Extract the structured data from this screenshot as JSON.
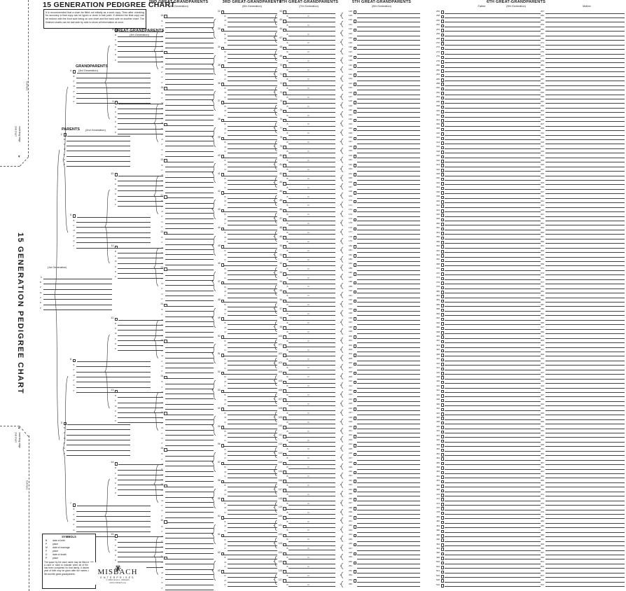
{
  "page_title": "15 GENERATION PEDIGREE CHART",
  "side_title": "15 GENERATION PEDIGREE CHART",
  "instructions": "It is recommended that a chart be filled out initially as a work copy. Then after checking for accuracy a final copy can be typed or done in ball point. If desired the final copy can be redone with the front side being on one chart and the back side on another chart. The finished charts can be laid side by side to show all information at once.",
  "cut_tab": {
    "cut_here": "Cut here",
    "match_line1": "2nd chart",
    "match_line2": "matching edge",
    "arrow_down": "▼",
    "arrow_up": "▲"
  },
  "field_labels": {
    "birth": "B",
    "place": "P",
    "marriage": "M",
    "death": "D"
  },
  "columns": [
    {
      "id": "gen1",
      "header": "",
      "subheader": "(1st Generation)",
      "start": 1,
      "end": 1
    },
    {
      "id": "gen2",
      "header": "PARENTS",
      "subheader": "(2nd Generation)",
      "start": 2,
      "end": 3
    },
    {
      "id": "gen3",
      "header": "GRANDPARENTS",
      "subheader": "(3rd Generation)",
      "start": 4,
      "end": 7
    },
    {
      "id": "gen4",
      "header": "GREAT-GRANDPARENTS",
      "subheader": "(4th Generation)",
      "start": 8,
      "end": 15
    },
    {
      "id": "gen5",
      "header": "2ND GREAT-GRANDPARENTS",
      "subheader": "(5th Generation)",
      "start": 16,
      "end": 31
    },
    {
      "id": "gen6",
      "header": "3RD GREAT-GRANDPARENTS",
      "subheader": "(6th Generation)",
      "start": 32,
      "end": 63
    },
    {
      "id": "gen7",
      "header": "4TH GREAT-GRANDPARENTS",
      "subheader": "(7th Generation)",
      "start": 64,
      "end": 127
    },
    {
      "id": "gen8",
      "header": "5TH GREAT-GRANDPARENTS",
      "subheader": "(8th Generation)",
      "start": 128,
      "end": 255
    },
    {
      "id": "gen9",
      "header": "6TH GREAT-GRANDPARENTS",
      "subheader": "(9th Generation)",
      "father_label": "Father",
      "mother_label": "Mother",
      "start": 256,
      "end": 511
    }
  ],
  "symbols_box": {
    "title": "SYMBOLS",
    "entries": [
      [
        "B",
        "date of birth"
      ],
      [
        "P",
        "place"
      ],
      [
        "M",
        "date of marriage"
      ],
      [
        "P",
        "place"
      ],
      [
        "D",
        "date of death"
      ],
      [
        "P",
        "place"
      ]
    ],
    "note": "The space by the each name may be filled in with a color or mark to indicate when all of the work has been completed for that family. If desired the year of birth may be given after the names of the 5th and 6th great grandparents."
  },
  "logo": {
    "star_icon": "starburst",
    "name": "MISBACH",
    "sub": "ENTERPRISES",
    "copyright": "© 2002 Grant L. Misbach",
    "url": "www.misbach.org"
  }
}
